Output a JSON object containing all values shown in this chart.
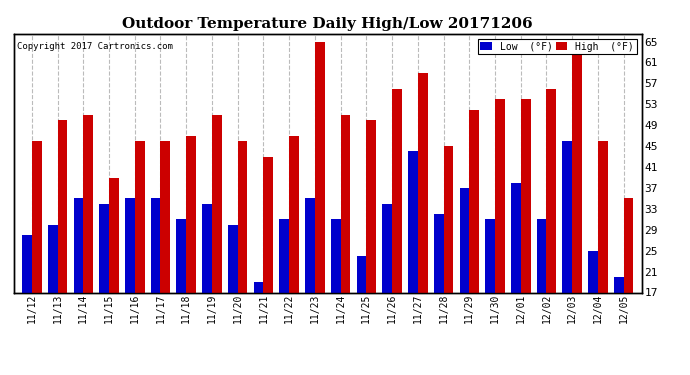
{
  "title": "Outdoor Temperature Daily High/Low 20171206",
  "copyright": "Copyright 2017 Cartronics.com",
  "dates": [
    "11/12",
    "11/13",
    "11/14",
    "11/15",
    "11/16",
    "11/17",
    "11/18",
    "11/19",
    "11/20",
    "11/21",
    "11/22",
    "11/23",
    "11/24",
    "11/25",
    "11/26",
    "11/27",
    "11/28",
    "11/29",
    "11/30",
    "12/01",
    "12/02",
    "12/03",
    "12/04",
    "12/05"
  ],
  "highs": [
    46,
    50,
    51,
    39,
    46,
    46,
    47,
    51,
    46,
    43,
    47,
    65,
    51,
    50,
    56,
    59,
    45,
    52,
    54,
    54,
    56,
    63,
    46,
    35
  ],
  "lows": [
    28,
    30,
    35,
    34,
    35,
    35,
    31,
    34,
    30,
    19,
    31,
    35,
    31,
    24,
    34,
    44,
    32,
    37,
    31,
    38,
    31,
    46,
    25,
    20
  ],
  "low_color": "#0000cc",
  "high_color": "#cc0000",
  "bg_color": "#ffffff",
  "plot_bg_color": "#ffffff",
  "grid_color": "#bbbbbb",
  "ylim_min": 17.0,
  "ylim_max": 66.5,
  "yticks": [
    17.0,
    21.0,
    25.0,
    29.0,
    33.0,
    37.0,
    41.0,
    45.0,
    49.0,
    53.0,
    57.0,
    61.0,
    65.0
  ],
  "legend_low_label": "Low  (°F)",
  "legend_high_label": "High  (°F)",
  "title_fontsize": 11,
  "bar_width": 0.38
}
